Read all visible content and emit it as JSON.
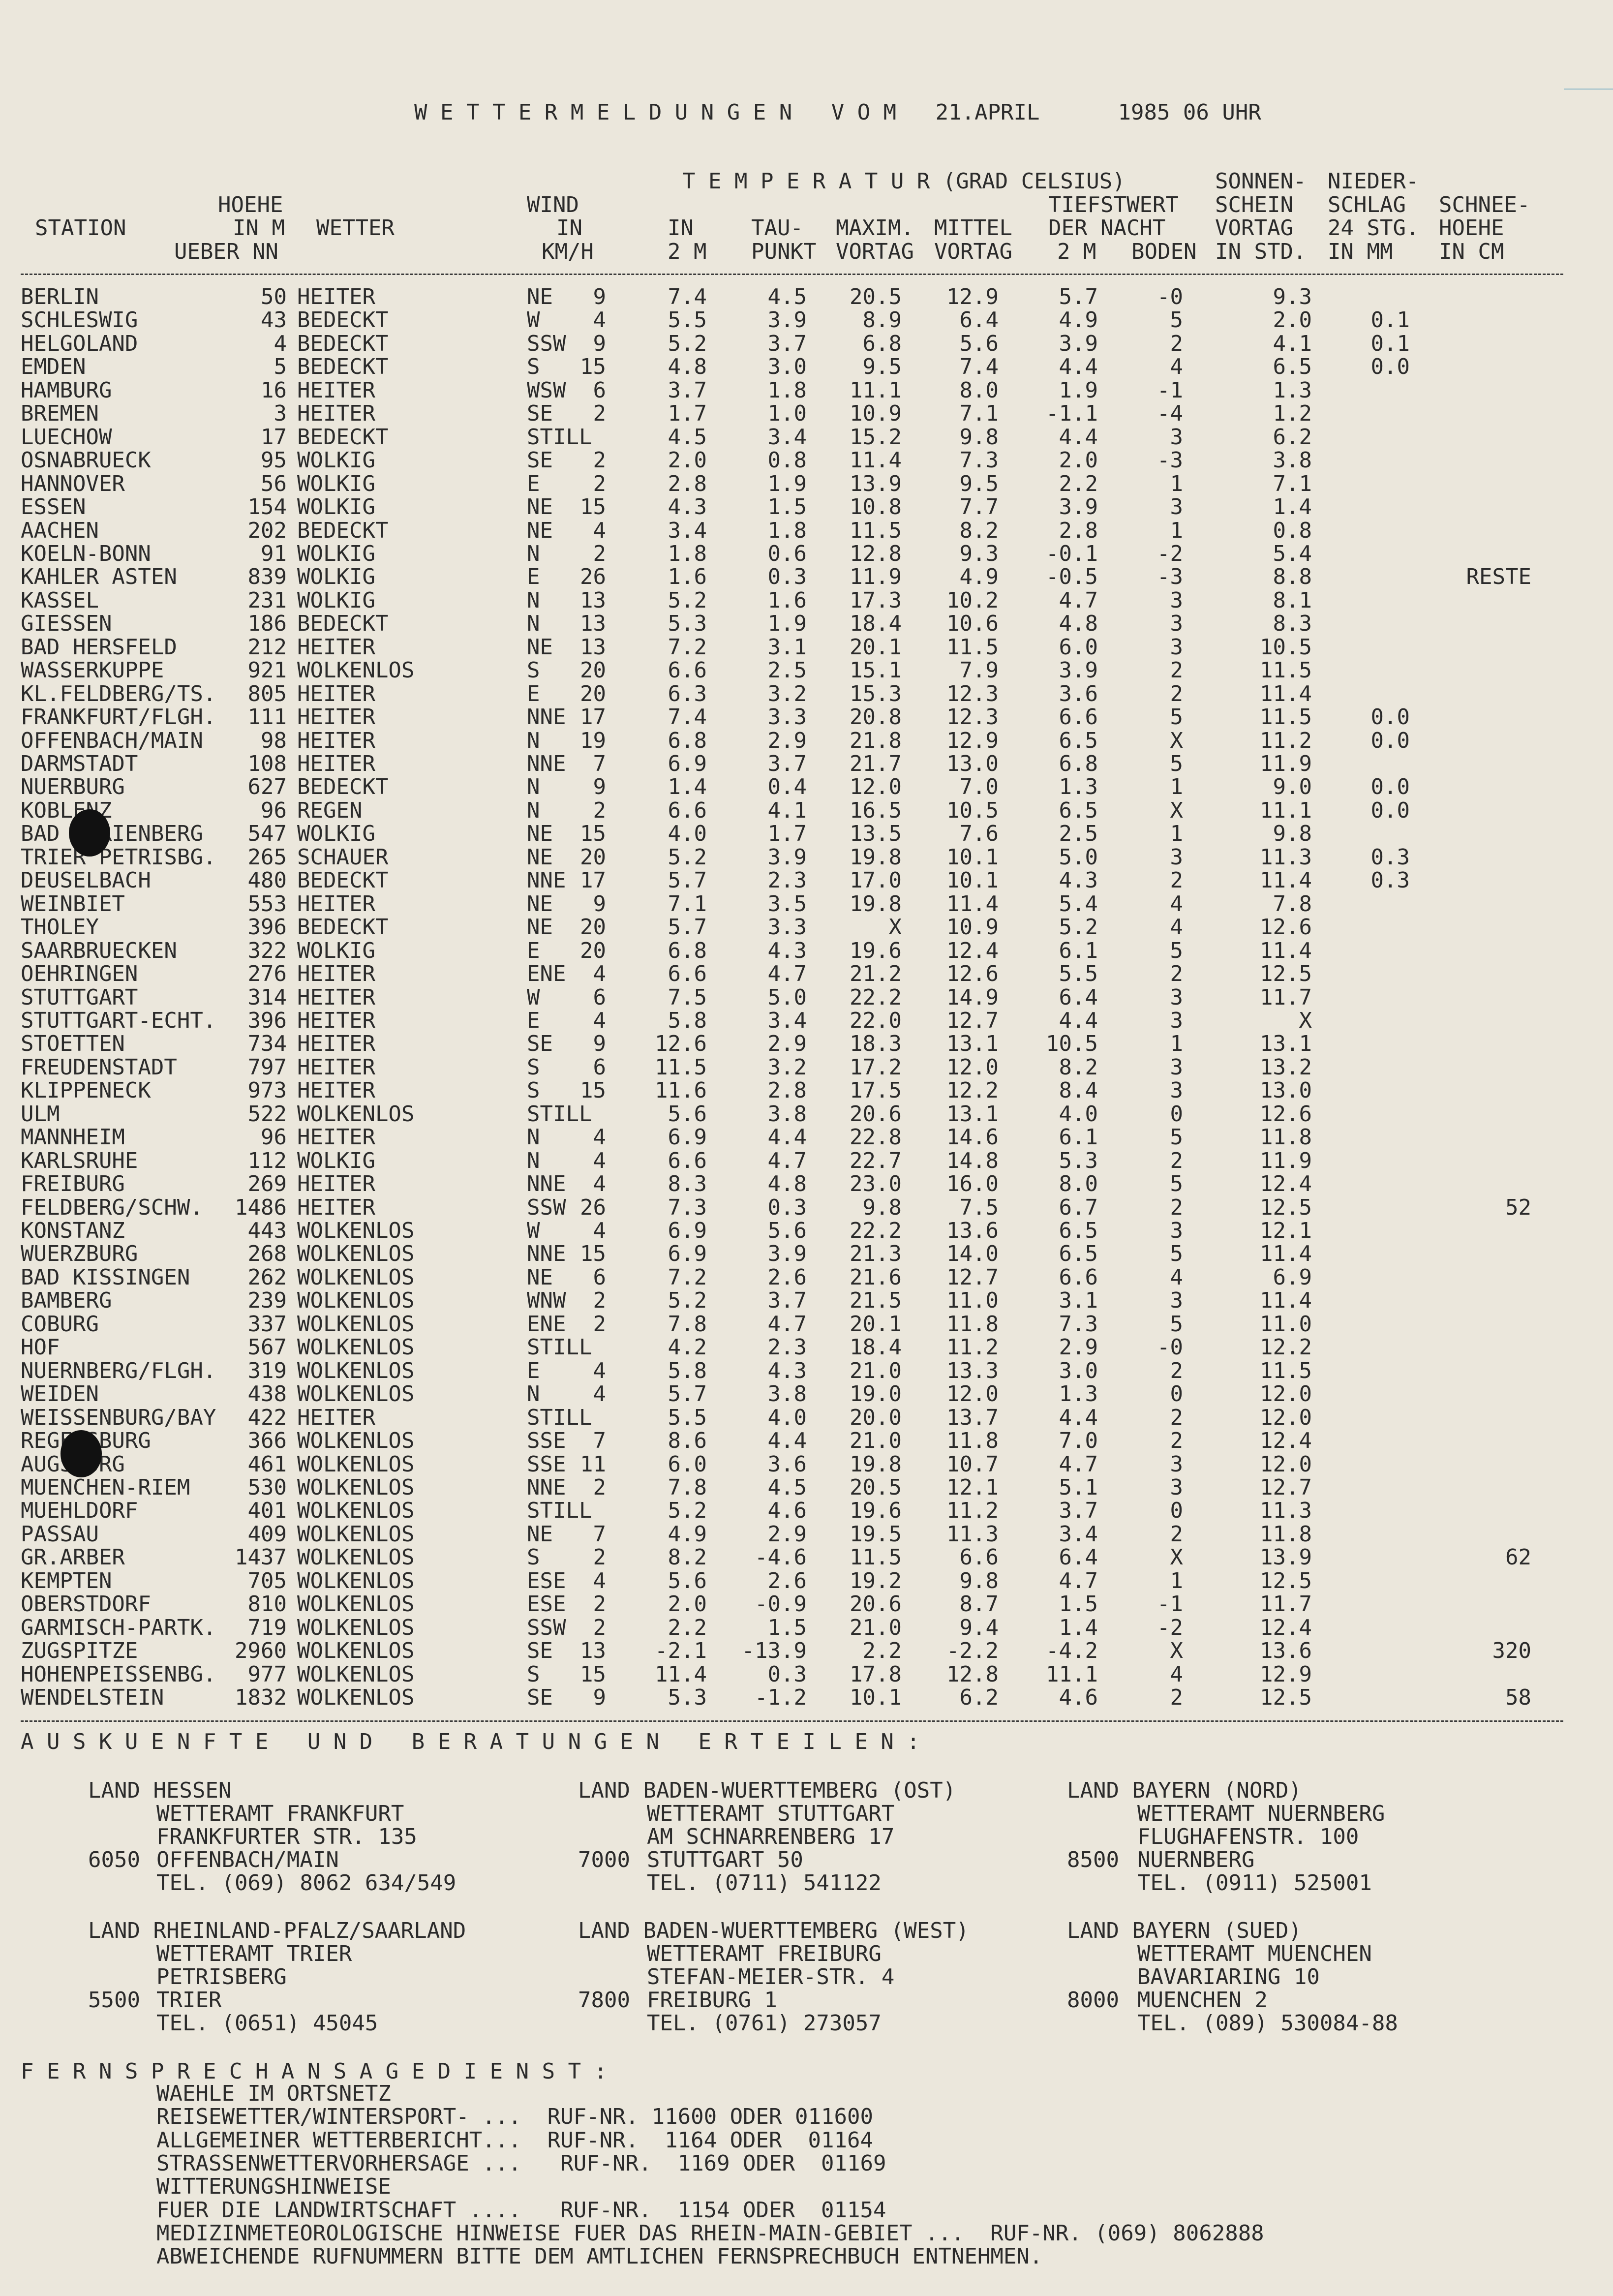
{
  "title": "W E T T E R M E L D U N G E N   V O M   21.APRIL      1985 06 UHR",
  "header": {
    "temperatur": "T E M P E R A T U R (GRAD CELSIUS)",
    "hoehe": [
      "HOEHE",
      "IN M",
      "UEBER NN"
    ],
    "station": "STATION",
    "wetter": "WETTER",
    "wind": [
      "WIND",
      "IN",
      "KM/H"
    ],
    "in2m": [
      "IN",
      "2 M"
    ],
    "taupunkt": [
      "TAU-",
      "PUNKT"
    ],
    "maxim": [
      "MAXIM.",
      "VORTAG"
    ],
    "mittel": [
      "MITTEL",
      "VORTAG"
    ],
    "tiefst": [
      "TIEFSTWERT",
      "DER NACHT",
      "2 M",
      "BODEN"
    ],
    "sonnen": [
      "SONNEN-",
      "SCHEIN",
      "VORTAG",
      "IN STD."
    ],
    "nieder": [
      "NIEDER-",
      "SCHLAG",
      "24 STG.",
      "IN MM"
    ],
    "schnee": [
      "SCHNEE-",
      "HOEHE",
      "IN CM"
    ]
  },
  "rows": [
    [
      "BERLIN",
      "50",
      "HEITER",
      "NE",
      "9",
      "7.4",
      "4.5",
      "20.5",
      "12.9",
      "5.7",
      "-0",
      "9.3",
      "",
      ""
    ],
    [
      "SCHLESWIG",
      "43",
      "BEDECKT",
      "W",
      "4",
      "5.5",
      "3.9",
      "8.9",
      "6.4",
      "4.9",
      "5",
      "2.0",
      "0.1",
      ""
    ],
    [
      "HELGOLAND",
      "4",
      "BEDECKT",
      "SSW",
      "9",
      "5.2",
      "3.7",
      "6.8",
      "5.6",
      "3.9",
      "2",
      "4.1",
      "0.1",
      ""
    ],
    [
      "EMDEN",
      "5",
      "BEDECKT",
      "S",
      "15",
      "4.8",
      "3.0",
      "9.5",
      "7.4",
      "4.4",
      "4",
      "6.5",
      "0.0",
      ""
    ],
    [
      "HAMBURG",
      "16",
      "HEITER",
      "WSW",
      "6",
      "3.7",
      "1.8",
      "11.1",
      "8.0",
      "1.9",
      "-1",
      "1.3",
      "",
      ""
    ],
    [
      "BREMEN",
      "3",
      "HEITER",
      "SE",
      "2",
      "1.7",
      "1.0",
      "10.9",
      "7.1",
      "-1.1",
      "-4",
      "1.2",
      "",
      ""
    ],
    [
      "LUECHOW",
      "17",
      "BEDECKT",
      "STILL",
      "",
      "4.5",
      "3.4",
      "15.2",
      "9.8",
      "4.4",
      "3",
      "6.2",
      "",
      ""
    ],
    [
      "OSNABRUECK",
      "95",
      "WOLKIG",
      "SE",
      "2",
      "2.0",
      "0.8",
      "11.4",
      "7.3",
      "2.0",
      "-3",
      "3.8",
      "",
      ""
    ],
    [
      "HANNOVER",
      "56",
      "WOLKIG",
      "E",
      "2",
      "2.8",
      "1.9",
      "13.9",
      "9.5",
      "2.2",
      "1",
      "7.1",
      "",
      ""
    ],
    [
      "ESSEN",
      "154",
      "WOLKIG",
      "NE",
      "15",
      "4.3",
      "1.5",
      "10.8",
      "7.7",
      "3.9",
      "3",
      "1.4",
      "",
      ""
    ],
    [
      "AACHEN",
      "202",
      "BEDECKT",
      "NE",
      "4",
      "3.4",
      "1.8",
      "11.5",
      "8.2",
      "2.8",
      "1",
      "0.8",
      "",
      ""
    ],
    [
      "KOELN-BONN",
      "91",
      "WOLKIG",
      "N",
      "2",
      "1.8",
      "0.6",
      "12.8",
      "9.3",
      "-0.1",
      "-2",
      "5.4",
      "",
      ""
    ],
    [
      "KAHLER ASTEN",
      "839",
      "WOLKIG",
      "E",
      "26",
      "1.6",
      "0.3",
      "11.9",
      "4.9",
      "-0.5",
      "-3",
      "8.8",
      "",
      "RESTE"
    ],
    [
      "KASSEL",
      "231",
      "WOLKIG",
      "N",
      "13",
      "5.2",
      "1.6",
      "17.3",
      "10.2",
      "4.7",
      "3",
      "8.1",
      "",
      ""
    ],
    [
      "GIESSEN",
      "186",
      "BEDECKT",
      "N",
      "13",
      "5.3",
      "1.9",
      "18.4",
      "10.6",
      "4.8",
      "3",
      "8.3",
      "",
      ""
    ],
    [
      "BAD HERSFELD",
      "212",
      "HEITER",
      "NE",
      "13",
      "7.2",
      "3.1",
      "20.1",
      "11.5",
      "6.0",
      "3",
      "10.5",
      "",
      ""
    ],
    [
      "WASSERKUPPE",
      "921",
      "WOLKENLOS",
      "S",
      "20",
      "6.6",
      "2.5",
      "15.1",
      "7.9",
      "3.9",
      "2",
      "11.5",
      "",
      ""
    ],
    [
      "KL.FELDBERG/TS.",
      "805",
      "HEITER",
      "E",
      "20",
      "6.3",
      "3.2",
      "15.3",
      "12.3",
      "3.6",
      "2",
      "11.4",
      "",
      ""
    ],
    [
      "FRANKFURT/FLGH.",
      "111",
      "HEITER",
      "NNE",
      "17",
      "7.4",
      "3.3",
      "20.8",
      "12.3",
      "6.6",
      "5",
      "11.5",
      "0.0",
      ""
    ],
    [
      "OFFENBACH/MAIN",
      "98",
      "HEITER",
      "N",
      "19",
      "6.8",
      "2.9",
      "21.8",
      "12.9",
      "6.5",
      "X",
      "11.2",
      "0.0",
      ""
    ],
    [
      "DARMSTADT",
      "108",
      "HEITER",
      "NNE",
      "7",
      "6.9",
      "3.7",
      "21.7",
      "13.0",
      "6.8",
      "5",
      "11.9",
      "",
      ""
    ],
    [
      "NUERBURG",
      "627",
      "BEDECKT",
      "N",
      "9",
      "1.4",
      "0.4",
      "12.0",
      "7.0",
      "1.3",
      "1",
      "9.0",
      "0.0",
      ""
    ],
    [
      "KOBLENZ",
      "96",
      "REGEN",
      "N",
      "2",
      "6.6",
      "4.1",
      "16.5",
      "10.5",
      "6.5",
      "X",
      "11.1",
      "0.0",
      ""
    ],
    [
      "BAD MARIENBERG",
      "547",
      "WOLKIG",
      "NE",
      "15",
      "4.0",
      "1.7",
      "13.5",
      "7.6",
      "2.5",
      "1",
      "9.8",
      "",
      ""
    ],
    [
      "TRIER PETRISBG.",
      "265",
      "SCHAUER",
      "NE",
      "20",
      "5.2",
      "3.9",
      "19.8",
      "10.1",
      "5.0",
      "3",
      "11.3",
      "0.3",
      ""
    ],
    [
      "DEUSELBACH",
      "480",
      "BEDECKT",
      "NNE",
      "17",
      "5.7",
      "2.3",
      "17.0",
      "10.1",
      "4.3",
      "2",
      "11.4",
      "0.3",
      ""
    ],
    [
      "WEINBIET",
      "553",
      "HEITER",
      "NE",
      "9",
      "7.1",
      "3.5",
      "19.8",
      "11.4",
      "5.4",
      "4",
      "7.8",
      "",
      ""
    ],
    [
      "THOLEY",
      "396",
      "BEDECKT",
      "NE",
      "20",
      "5.7",
      "3.3",
      "X",
      "10.9",
      "5.2",
      "4",
      "12.6",
      "",
      ""
    ],
    [
      "SAARBRUECKEN",
      "322",
      "WOLKIG",
      "E",
      "20",
      "6.8",
      "4.3",
      "19.6",
      "12.4",
      "6.1",
      "5",
      "11.4",
      "",
      ""
    ],
    [
      "OEHRINGEN",
      "276",
      "HEITER",
      "ENE",
      "4",
      "6.6",
      "4.7",
      "21.2",
      "12.6",
      "5.5",
      "2",
      "12.5",
      "",
      ""
    ],
    [
      "STUTTGART",
      "314",
      "HEITER",
      "W",
      "6",
      "7.5",
      "5.0",
      "22.2",
      "14.9",
      "6.4",
      "3",
      "11.7",
      "",
      ""
    ],
    [
      "STUTTGART-ECHT.",
      "396",
      "HEITER",
      "E",
      "4",
      "5.8",
      "3.4",
      "22.0",
      "12.7",
      "4.4",
      "3",
      "X",
      "",
      ""
    ],
    [
      "STOETTEN",
      "734",
      "HEITER",
      "SE",
      "9",
      "12.6",
      "2.9",
      "18.3",
      "13.1",
      "10.5",
      "1",
      "13.1",
      "",
      ""
    ],
    [
      "FREUDENSTADT",
      "797",
      "HEITER",
      "S",
      "6",
      "11.5",
      "3.2",
      "17.2",
      "12.0",
      "8.2",
      "3",
      "13.2",
      "",
      ""
    ],
    [
      "KLIPPENECK",
      "973",
      "HEITER",
      "S",
      "15",
      "11.6",
      "2.8",
      "17.5",
      "12.2",
      "8.4",
      "3",
      "13.0",
      "",
      ""
    ],
    [
      "ULM",
      "522",
      "WOLKENLOS",
      "STILL",
      "",
      "5.6",
      "3.8",
      "20.6",
      "13.1",
      "4.0",
      "0",
      "12.6",
      "",
      ""
    ],
    [
      "MANNHEIM",
      "96",
      "HEITER",
      "N",
      "4",
      "6.9",
      "4.4",
      "22.8",
      "14.6",
      "6.1",
      "5",
      "11.8",
      "",
      ""
    ],
    [
      "KARLSRUHE",
      "112",
      "WOLKIG",
      "N",
      "4",
      "6.6",
      "4.7",
      "22.7",
      "14.8",
      "5.3",
      "2",
      "11.9",
      "",
      ""
    ],
    [
      "FREIBURG",
      "269",
      "HEITER",
      "NNE",
      "4",
      "8.3",
      "4.8",
      "23.0",
      "16.0",
      "8.0",
      "5",
      "12.4",
      "",
      ""
    ],
    [
      "FELDBERG/SCHW.",
      "1486",
      "HEITER",
      "SSW",
      "26",
      "7.3",
      "0.3",
      "9.8",
      "7.5",
      "6.7",
      "2",
      "12.5",
      "",
      "52"
    ],
    [
      "KONSTANZ",
      "443",
      "WOLKENLOS",
      "W",
      "4",
      "6.9",
      "5.6",
      "22.2",
      "13.6",
      "6.5",
      "3",
      "12.1",
      "",
      ""
    ],
    [
      "WUERZBURG",
      "268",
      "WOLKENLOS",
      "NNE",
      "15",
      "6.9",
      "3.9",
      "21.3",
      "14.0",
      "6.5",
      "5",
      "11.4",
      "",
      ""
    ],
    [
      "BAD KISSINGEN",
      "262",
      "WOLKENLOS",
      "NE",
      "6",
      "7.2",
      "2.6",
      "21.6",
      "12.7",
      "6.6",
      "4",
      "6.9",
      "",
      ""
    ],
    [
      "BAMBERG",
      "239",
      "WOLKENLOS",
      "WNW",
      "2",
      "5.2",
      "3.7",
      "21.5",
      "11.0",
      "3.1",
      "3",
      "11.4",
      "",
      ""
    ],
    [
      "COBURG",
      "337",
      "WOLKENLOS",
      "ENE",
      "2",
      "7.8",
      "4.7",
      "20.1",
      "11.8",
      "7.3",
      "5",
      "11.0",
      "",
      ""
    ],
    [
      "HOF",
      "567",
      "WOLKENLOS",
      "STILL",
      "",
      "4.2",
      "2.3",
      "18.4",
      "11.2",
      "2.9",
      "-0",
      "12.2",
      "",
      ""
    ],
    [
      "NUERNBERG/FLGH.",
      "319",
      "WOLKENLOS",
      "E",
      "4",
      "5.8",
      "4.3",
      "21.0",
      "13.3",
      "3.0",
      "2",
      "11.5",
      "",
      ""
    ],
    [
      "WEIDEN",
      "438",
      "WOLKENLOS",
      "N",
      "4",
      "5.7",
      "3.8",
      "19.0",
      "12.0",
      "1.3",
      "0",
      "12.0",
      "",
      ""
    ],
    [
      "WEISSENBURG/BAY",
      "422",
      "HEITER",
      "STILL",
      "",
      "5.5",
      "4.0",
      "20.0",
      "13.7",
      "4.4",
      "2",
      "12.0",
      "",
      ""
    ],
    [
      "REGENSBURG",
      "366",
      "WOLKENLOS",
      "SSE",
      "7",
      "8.6",
      "4.4",
      "21.0",
      "11.8",
      "7.0",
      "2",
      "12.4",
      "",
      ""
    ],
    [
      "AUGSBURG",
      "461",
      "WOLKENLOS",
      "SSE",
      "11",
      "6.0",
      "3.6",
      "19.8",
      "10.7",
      "4.7",
      "3",
      "12.0",
      "",
      ""
    ],
    [
      "MUENCHEN-RIEM",
      "530",
      "WOLKENLOS",
      "NNE",
      "2",
      "7.8",
      "4.5",
      "20.5",
      "12.1",
      "5.1",
      "3",
      "12.7",
      "",
      ""
    ],
    [
      "MUEHLDORF",
      "401",
      "WOLKENLOS",
      "STILL",
      "",
      "5.2",
      "4.6",
      "19.6",
      "11.2",
      "3.7",
      "0",
      "11.3",
      "",
      ""
    ],
    [
      "PASSAU",
      "409",
      "WOLKENLOS",
      "NE",
      "7",
      "4.9",
      "2.9",
      "19.5",
      "11.3",
      "3.4",
      "2",
      "11.8",
      "",
      ""
    ],
    [
      "GR.ARBER",
      "1437",
      "WOLKENLOS",
      "S",
      "2",
      "8.2",
      "-4.6",
      "11.5",
      "6.6",
      "6.4",
      "X",
      "13.9",
      "",
      "62"
    ],
    [
      "KEMPTEN",
      "705",
      "WOLKENLOS",
      "ESE",
      "4",
      "5.6",
      "2.6",
      "19.2",
      "9.8",
      "4.7",
      "1",
      "12.5",
      "",
      ""
    ],
    [
      "OBERSTDORF",
      "810",
      "WOLKENLOS",
      "ESE",
      "2",
      "2.0",
      "-0.9",
      "20.6",
      "8.7",
      "1.5",
      "-1",
      "11.7",
      "",
      ""
    ],
    [
      "GARMISCH-PARTK.",
      "719",
      "WOLKENLOS",
      "SSW",
      "2",
      "2.2",
      "1.5",
      "21.0",
      "9.4",
      "1.4",
      "-2",
      "12.4",
      "",
      ""
    ],
    [
      "ZUGSPITZE",
      "2960",
      "WOLKENLOS",
      "SE",
      "13",
      "-2.1",
      "-13.9",
      "2.2",
      "-2.2",
      "-4.2",
      "X",
      "13.6",
      "",
      "320"
    ],
    [
      "HOHENPEISSENBG.",
      "977",
      "WOLKENLOS",
      "S",
      "15",
      "11.4",
      "0.3",
      "17.8",
      "12.8",
      "11.1",
      "4",
      "12.9",
      "",
      ""
    ],
    [
      "WENDELSTEIN",
      "1832",
      "WOLKENLOS",
      "SE",
      "9",
      "5.3",
      "-1.2",
      "10.1",
      "6.2",
      "4.6",
      "2",
      "12.5",
      "",
      "58"
    ]
  ],
  "auskunft": {
    "heading": "A U S K U E N F T E   U N D   B E R A T U N G E N   E R T E I L E N :",
    "blocks": [
      {
        "land": "LAND HESSEN",
        "amt": "WETTERAMT FRANKFURT",
        "street": "FRANKFURTER STR. 135",
        "plz": "6050",
        "city": "OFFENBACH/MAIN",
        "tel": "TEL. (069) 8062 634/549"
      },
      {
        "land": "LAND BADEN-WUERTTEMBERG (OST)",
        "amt": "WETTERAMT STUTTGART",
        "street": "AM SCHNARRENBERG 17",
        "plz": "7000",
        "city": "STUTTGART 50",
        "tel": "TEL. (0711) 541122"
      },
      {
        "land": "LAND BAYERN (NORD)",
        "amt": "WETTERAMT NUERNBERG",
        "street": "FLUGHAFENSTR. 100",
        "plz": "8500",
        "city": "NUERNBERG",
        "tel": "TEL. (0911) 525001"
      },
      {
        "land": "LAND RHEINLAND-PFALZ/SAARLAND",
        "amt": "WETTERAMT TRIER",
        "street": "PETRISBERG",
        "plz": "5500",
        "city": "TRIER",
        "tel": "TEL. (0651) 45045"
      },
      {
        "land": "LAND BADEN-WUERTTEMBERG (WEST)",
        "amt": "WETTERAMT FREIBURG",
        "street": "STEFAN-MEIER-STR. 4",
        "plz": "7800",
        "city": "FREIBURG 1",
        "tel": "TEL. (0761) 273057"
      },
      {
        "land": "LAND BAYERN (SUED)",
        "amt": "WETTERAMT MUENCHEN",
        "street": "BAVARIARING 10",
        "plz": "8000",
        "city": "MUENCHEN 2",
        "tel": "TEL. (089) 530084-88"
      }
    ]
  },
  "fernsprech": {
    "heading": "F E R N S P R E C H A N S A G E D I E N S T :",
    "lines": [
      "WAEHLE IM ORTSNETZ",
      "REISEWETTER/WINTERSPORT- ...  RUF-NR. 11600 ODER 011600",
      "ALLGEMEINER WETTERBERICHT...  RUF-NR.  1164 ODER  01164",
      "STRASSENWETTERVORHERSAGE ...   RUF-NR.  1169 ODER  01169",
      "WITTERUNGSHINWEISE",
      "FUER DIE LANDWIRTSCHAFT ....   RUF-NR.  1154 ODER  01154",
      "MEDIZINMETEOROLOGISCHE HINWEISE FUER DAS RHEIN-MAIN-GEBIET ...  RUF-NR. (069) 8062888",
      "ABWEICHENDE RUFNUMMERN BITTE DEM AMTLICHEN FERNSPRECHBUCH ENTNEHMEN."
    ]
  }
}
